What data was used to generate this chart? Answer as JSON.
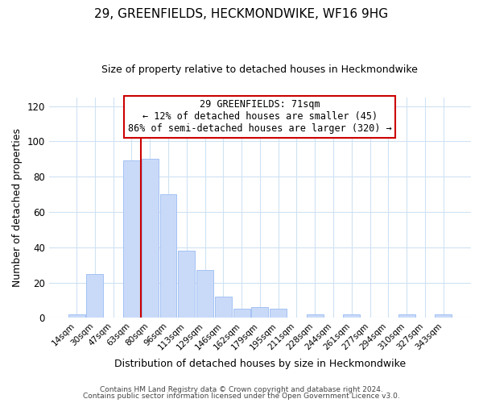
{
  "title": "29, GREENFIELDS, HECKMONDWIKE, WF16 9HG",
  "subtitle": "Size of property relative to detached houses in Heckmondwike",
  "xlabel": "Distribution of detached houses by size in Heckmondwike",
  "ylabel": "Number of detached properties",
  "bar_labels": [
    "14sqm",
    "30sqm",
    "47sqm",
    "63sqm",
    "80sqm",
    "96sqm",
    "113sqm",
    "129sqm",
    "146sqm",
    "162sqm",
    "179sqm",
    "195sqm",
    "211sqm",
    "228sqm",
    "244sqm",
    "261sqm",
    "277sqm",
    "294sqm",
    "310sqm",
    "327sqm",
    "343sqm"
  ],
  "bar_values": [
    2,
    25,
    0,
    89,
    90,
    70,
    38,
    27,
    12,
    5,
    6,
    5,
    0,
    2,
    0,
    2,
    0,
    0,
    2,
    0,
    2
  ],
  "bar_color": "#c9daf8",
  "bar_edge_color": "#a4c2f4",
  "vline_x": 3.5,
  "vline_color": "#cc0000",
  "annotation_title": "29 GREENFIELDS: 71sqm",
  "annotation_line1": "← 12% of detached houses are smaller (45)",
  "annotation_line2": "86% of semi-detached houses are larger (320) →",
  "annotation_box_color": "#ffffff",
  "annotation_box_edge": "#cc0000",
  "ylim": [
    0,
    125
  ],
  "yticks": [
    0,
    20,
    40,
    60,
    80,
    100,
    120
  ],
  "footer1": "Contains HM Land Registry data © Crown copyright and database right 2024.",
  "footer2": "Contains public sector information licensed under the Open Government Licence v3.0.",
  "background_color": "#ffffff",
  "grid_color": "#cfe2f3"
}
